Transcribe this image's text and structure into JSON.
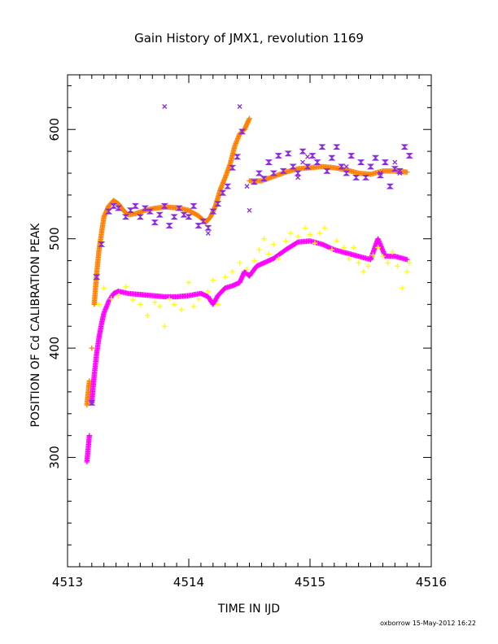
{
  "footer": "oxborrow 15-May-2012 16:22",
  "chart_data": {
    "type": "scatter",
    "title": "Gain History of JMX1, revolution 1169",
    "xlabel": "TIME IN IJD",
    "ylabel": "POSITION OF Cd CALIBRATION PEAK",
    "xlim": [
      4513,
      4516
    ],
    "ylim": [
      200,
      650
    ],
    "xticks": [
      {
        "value": 4513,
        "label": "4513"
      },
      {
        "value": 4514,
        "label": "4514"
      },
      {
        "value": 4515,
        "label": "4515"
      },
      {
        "value": 4516,
        "label": "4516"
      }
    ],
    "yticks": [
      {
        "value": 300,
        "label": "300"
      },
      {
        "value": 400,
        "label": "400"
      },
      {
        "value": 500,
        "label": "500"
      },
      {
        "value": 600,
        "label": "600"
      }
    ],
    "grid": false,
    "series": [
      {
        "color": "#ff8000",
        "marker": "plus",
        "style": "dense",
        "points": [
          [
            4513.16,
            348
          ],
          [
            4513.18,
            370
          ],
          [
            4513.2,
            400
          ],
          [
            4513.22,
            440
          ],
          [
            4513.24,
            468
          ],
          [
            4513.26,
            490
          ],
          [
            4513.28,
            505
          ],
          [
            4513.3,
            520
          ],
          [
            4513.34,
            530
          ],
          [
            4513.38,
            535
          ],
          [
            4513.42,
            532
          ],
          [
            4513.46,
            526
          ],
          [
            4513.5,
            522
          ],
          [
            4513.56,
            523
          ],
          [
            4513.64,
            526
          ],
          [
            4513.72,
            528
          ],
          [
            4513.82,
            529
          ],
          [
            4513.92,
            528
          ],
          [
            4514.0,
            526
          ],
          [
            4514.08,
            521
          ],
          [
            4514.14,
            515
          ],
          [
            4514.18,
            520
          ],
          [
            4514.22,
            530
          ],
          [
            4514.26,
            545
          ],
          [
            4514.3,
            556
          ],
          [
            4514.34,
            568
          ],
          [
            4514.38,
            585
          ],
          [
            4514.42,
            596
          ],
          [
            4514.46,
            600
          ],
          [
            4514.5,
            610
          ],
          [
            4514.5,
            553
          ],
          [
            4514.6,
            553
          ],
          [
            4514.7,
            557
          ],
          [
            4514.8,
            561
          ],
          [
            4514.9,
            564
          ],
          [
            4515.0,
            565
          ],
          [
            4515.1,
            566
          ],
          [
            4515.2,
            565
          ],
          [
            4515.3,
            563
          ],
          [
            4515.4,
            560
          ],
          [
            4515.5,
            559
          ],
          [
            4515.6,
            562
          ],
          [
            4515.7,
            562
          ],
          [
            4515.8,
            561
          ]
        ]
      },
      {
        "color": "#ff00ff",
        "marker": "plus",
        "style": "dense",
        "points": [
          [
            4513.16,
            296
          ],
          [
            4513.18,
            320
          ],
          [
            4513.2,
            350
          ],
          [
            4513.22,
            375
          ],
          [
            4513.24,
            395
          ],
          [
            4513.26,
            410
          ],
          [
            4513.28,
            422
          ],
          [
            4513.3,
            432
          ],
          [
            4513.34,
            443
          ],
          [
            4513.38,
            450
          ],
          [
            4513.42,
            452
          ],
          [
            4513.5,
            450
          ],
          [
            4513.6,
            449
          ],
          [
            4513.7,
            448
          ],
          [
            4513.8,
            447
          ],
          [
            4513.9,
            447
          ],
          [
            4514.0,
            448
          ],
          [
            4514.1,
            450
          ],
          [
            4514.16,
            447
          ],
          [
            4514.2,
            440
          ],
          [
            4514.24,
            448
          ],
          [
            4514.3,
            455
          ],
          [
            4514.36,
            457
          ],
          [
            4514.42,
            460
          ],
          [
            4514.46,
            470
          ],
          [
            4514.5,
            466
          ],
          [
            4514.56,
            475
          ],
          [
            4514.62,
            478
          ],
          [
            4514.7,
            482
          ],
          [
            4514.8,
            490
          ],
          [
            4514.9,
            497
          ],
          [
            4515.0,
            498
          ],
          [
            4515.1,
            495
          ],
          [
            4515.2,
            490
          ],
          [
            4515.3,
            487
          ],
          [
            4515.4,
            484
          ],
          [
            4515.5,
            481
          ],
          [
            4515.56,
            500
          ],
          [
            4515.62,
            484
          ],
          [
            4515.7,
            484
          ],
          [
            4515.8,
            481
          ]
        ]
      },
      {
        "color": "#8a2be2",
        "marker": "bowtie",
        "style": "scatter",
        "points": [
          [
            4513.2,
            350
          ],
          [
            4513.24,
            465
          ],
          [
            4513.28,
            495
          ],
          [
            4513.34,
            525
          ],
          [
            4513.38,
            530
          ],
          [
            4513.42,
            528
          ],
          [
            4513.48,
            520
          ],
          [
            4513.52,
            526
          ],
          [
            4513.56,
            530
          ],
          [
            4513.6,
            520
          ],
          [
            4513.64,
            528
          ],
          [
            4513.68,
            525
          ],
          [
            4513.72,
            515
          ],
          [
            4513.76,
            522
          ],
          [
            4513.8,
            530
          ],
          [
            4513.84,
            512
          ],
          [
            4513.88,
            520
          ],
          [
            4513.92,
            528
          ],
          [
            4513.96,
            522
          ],
          [
            4514.0,
            520
          ],
          [
            4514.04,
            530
          ],
          [
            4514.08,
            512
          ],
          [
            4514.12,
            516
          ],
          [
            4514.16,
            510
          ],
          [
            4514.2,
            525
          ],
          [
            4514.24,
            532
          ],
          [
            4514.28,
            542
          ],
          [
            4514.32,
            548
          ],
          [
            4514.36,
            565
          ],
          [
            4514.4,
            575
          ],
          [
            4514.44,
            598
          ],
          [
            4514.54,
            552
          ],
          [
            4514.58,
            560
          ],
          [
            4514.62,
            555
          ],
          [
            4514.66,
            570
          ],
          [
            4514.7,
            560
          ],
          [
            4514.74,
            576
          ],
          [
            4514.78,
            562
          ],
          [
            4514.82,
            578
          ],
          [
            4514.86,
            566
          ],
          [
            4514.9,
            560
          ],
          [
            4514.94,
            580
          ],
          [
            4514.98,
            566
          ],
          [
            4515.02,
            576
          ],
          [
            4515.06,
            570
          ],
          [
            4515.1,
            584
          ],
          [
            4515.14,
            562
          ],
          [
            4515.18,
            574
          ],
          [
            4515.22,
            584
          ],
          [
            4515.26,
            566
          ],
          [
            4515.3,
            560
          ],
          [
            4515.34,
            576
          ],
          [
            4515.38,
            556
          ],
          [
            4515.42,
            570
          ],
          [
            4515.46,
            556
          ],
          [
            4515.5,
            566
          ],
          [
            4515.54,
            574
          ],
          [
            4515.58,
            558
          ],
          [
            4515.62,
            570
          ],
          [
            4515.66,
            548
          ],
          [
            4515.7,
            564
          ],
          [
            4515.74,
            562
          ],
          [
            4515.78,
            584
          ],
          [
            4515.82,
            576
          ]
        ]
      },
      {
        "color": "#8a2be2",
        "marker": "x",
        "style": "scatter",
        "points": [
          [
            4513.8,
            621
          ],
          [
            4514.42,
            621
          ],
          [
            4514.16,
            505
          ],
          [
            4514.5,
            526
          ],
          [
            4514.9,
            556
          ],
          [
            4514.94,
            570
          ],
          [
            4514.98,
            575
          ],
          [
            4515.3,
            566
          ],
          [
            4515.7,
            570
          ],
          [
            4515.74,
            560
          ],
          [
            4514.48,
            548
          ],
          [
            4515.58,
            560
          ]
        ]
      },
      {
        "color": "#ffff00",
        "marker": "plus",
        "style": "scatter",
        "points": [
          [
            4513.26,
            440
          ],
          [
            4513.3,
            455
          ],
          [
            4513.36,
            445
          ],
          [
            4513.42,
            448
          ],
          [
            4513.48,
            456
          ],
          [
            4513.54,
            444
          ],
          [
            4513.6,
            440
          ],
          [
            4513.66,
            430
          ],
          [
            4513.72,
            442
          ],
          [
            4513.76,
            438
          ],
          [
            4513.8,
            420
          ],
          [
            4513.84,
            445
          ],
          [
            4513.88,
            440
          ],
          [
            4513.94,
            435
          ],
          [
            4514.0,
            460
          ],
          [
            4514.04,
            438
          ],
          [
            4514.08,
            445
          ],
          [
            4514.16,
            452
          ],
          [
            4514.2,
            462
          ],
          [
            4514.24,
            440
          ],
          [
            4514.3,
            465
          ],
          [
            4514.36,
            470
          ],
          [
            4514.42,
            478
          ],
          [
            4514.48,
            472
          ],
          [
            4514.54,
            480
          ],
          [
            4514.58,
            490
          ],
          [
            4514.62,
            500
          ],
          [
            4514.66,
            486
          ],
          [
            4514.7,
            495
          ],
          [
            4514.74,
            482
          ],
          [
            4514.8,
            498
          ],
          [
            4514.84,
            505
          ],
          [
            4514.9,
            502
          ],
          [
            4514.96,
            510
          ],
          [
            4515.0,
            504
          ],
          [
            4515.04,
            496
          ],
          [
            4515.08,
            505
          ],
          [
            4515.12,
            510
          ],
          [
            4515.18,
            490
          ],
          [
            4515.22,
            498
          ],
          [
            4515.28,
            492
          ],
          [
            4515.32,
            482
          ],
          [
            4515.36,
            492
          ],
          [
            4515.4,
            478
          ],
          [
            4515.44,
            470
          ],
          [
            4515.48,
            475
          ],
          [
            4515.52,
            485
          ],
          [
            4515.56,
            492
          ],
          [
            4515.6,
            484
          ],
          [
            4515.64,
            478
          ],
          [
            4515.68,
            488
          ],
          [
            4515.72,
            475
          ],
          [
            4515.76,
            455
          ],
          [
            4515.8,
            470
          ],
          [
            4515.82,
            478
          ]
        ]
      }
    ]
  }
}
